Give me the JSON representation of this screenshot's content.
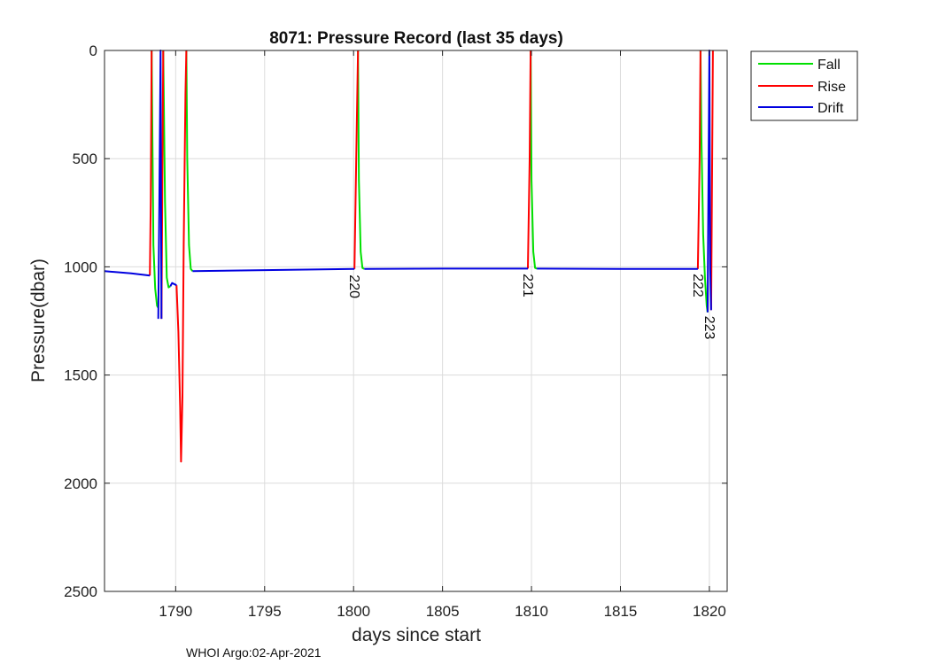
{
  "chart_data": {
    "type": "line",
    "title": "8071: Pressure Record (last 35 days)",
    "xlabel": "days since start",
    "ylabel": "Pressure(dbar)",
    "xlim": [
      1786,
      1821
    ],
    "ylim": [
      0,
      2500
    ],
    "y_reversed": true,
    "grid": true,
    "legend_position": "outside-top-right",
    "xticks": [
      1790,
      1795,
      1800,
      1805,
      1810,
      1815,
      1820
    ],
    "yticks": [
      0,
      500,
      1000,
      1500,
      2000,
      2500
    ],
    "series": [
      {
        "name": "Fall",
        "color": "#00e000",
        "segments": [
          [
            [
              1788.65,
              0
            ],
            [
              1788.75,
              900
            ],
            [
              1788.85,
              1100
            ],
            [
              1788.95,
              1180
            ],
            [
              1789.02,
              1190
            ]
          ],
          [
            [
              1789.3,
              0
            ],
            [
              1789.4,
              700
            ],
            [
              1789.5,
              1050
            ],
            [
              1789.6,
              1095
            ],
            [
              1789.7,
              1090
            ]
          ],
          [
            [
              1790.6,
              0
            ],
            [
              1790.65,
              500
            ],
            [
              1790.75,
              900
            ],
            [
              1790.85,
              1010
            ],
            [
              1790.95,
              1020
            ]
          ],
          [
            [
              1800.25,
              0
            ],
            [
              1800.3,
              600
            ],
            [
              1800.4,
              930
            ],
            [
              1800.5,
              1005
            ],
            [
              1800.6,
              1010
            ]
          ],
          [
            [
              1809.95,
              0
            ],
            [
              1810.0,
              600
            ],
            [
              1810.1,
              930
            ],
            [
              1810.2,
              1005
            ],
            [
              1810.3,
              1008
            ]
          ],
          [
            [
              1819.5,
              0
            ],
            [
              1819.55,
              400
            ],
            [
              1819.65,
              850
            ],
            [
              1819.75,
              1050
            ],
            [
              1819.85,
              1180
            ],
            [
              1819.9,
              1210
            ]
          ]
        ]
      },
      {
        "name": "Rise",
        "color": "#ff0000",
        "segments": [
          [
            [
              1788.55,
              1040
            ],
            [
              1788.6,
              700
            ],
            [
              1788.65,
              0
            ]
          ],
          [
            [
              1789.2,
              1240
            ],
            [
              1789.25,
              600
            ],
            [
              1789.3,
              0
            ]
          ],
          [
            [
              1790.05,
              1085
            ],
            [
              1790.15,
              1300
            ],
            [
              1790.25,
              1650
            ],
            [
              1790.3,
              1900
            ],
            [
              1790.38,
              1600
            ],
            [
              1790.45,
              900
            ],
            [
              1790.55,
              200
            ],
            [
              1790.6,
              0
            ]
          ],
          [
            [
              1800.05,
              1010
            ],
            [
              1800.15,
              500
            ],
            [
              1800.25,
              0
            ]
          ],
          [
            [
              1809.8,
              1008
            ],
            [
              1809.9,
              500
            ],
            [
              1809.95,
              0
            ]
          ],
          [
            [
              1819.35,
              1010
            ],
            [
              1819.45,
              500
            ],
            [
              1819.5,
              0
            ]
          ],
          [
            [
              1820.1,
              1200
            ],
            [
              1820.15,
              600
            ],
            [
              1820.2,
              0
            ]
          ]
        ]
      },
      {
        "name": "Drift",
        "color": "#0000e0",
        "segments": [
          [
            [
              1786,
              1020
            ],
            [
              1787.5,
              1030
            ],
            [
              1788.55,
              1040
            ]
          ],
          [
            [
              1789.02,
              1240
            ],
            [
              1789.08,
              700
            ],
            [
              1789.15,
              0
            ],
            [
              1789.2,
              1240
            ]
          ],
          [
            [
              1789.7,
              1090
            ],
            [
              1789.8,
              1075
            ],
            [
              1790.05,
              1085
            ]
          ],
          [
            [
              1790.95,
              1020
            ],
            [
              1795,
              1015
            ],
            [
              1800.05,
              1010
            ]
          ],
          [
            [
              1800.6,
              1010
            ],
            [
              1805,
              1008
            ],
            [
              1809.8,
              1008
            ]
          ],
          [
            [
              1810.3,
              1008
            ],
            [
              1815,
              1010
            ],
            [
              1819.35,
              1010
            ]
          ],
          [
            [
              1819.9,
              1210
            ],
            [
              1819.95,
              600
            ],
            [
              1820.0,
              0
            ],
            [
              1820.05,
              1010
            ],
            [
              1820.1,
              1200
            ]
          ]
        ]
      }
    ],
    "cycle_labels": [
      {
        "text": "220",
        "x": 1800.1,
        "y": 1020
      },
      {
        "text": "221",
        "x": 1809.85,
        "y": 1015
      },
      {
        "text": "222",
        "x": 1819.4,
        "y": 1015
      },
      {
        "text": "223",
        "x": 1820.05,
        "y": 1210
      }
    ]
  },
  "footer": "WHOI Argo:02-Apr-2021"
}
